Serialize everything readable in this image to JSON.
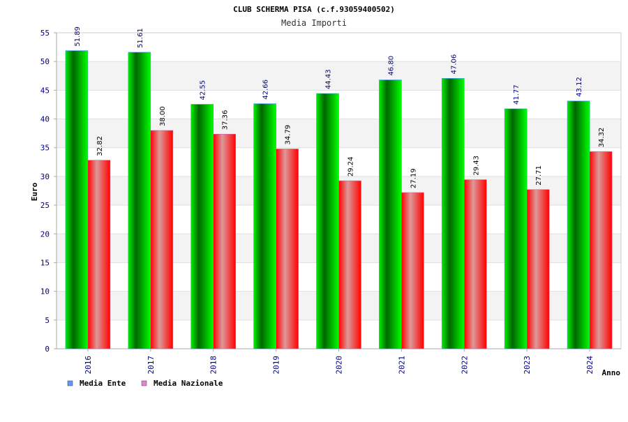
{
  "chart_data": {
    "type": "bar",
    "title": "CLUB SCHERMA PISA (c.f.93059400502)",
    "subtitle": "Media Importi",
    "xlabel": "Anno",
    "ylabel": "Euro",
    "categories": [
      "2016",
      "2017",
      "2018",
      "2019",
      "2020",
      "2021",
      "2022",
      "2023",
      "2024"
    ],
    "series": [
      {
        "name": "Media Ente",
        "values": [
          51.89,
          51.61,
          42.55,
          42.66,
          44.43,
          46.8,
          47.06,
          41.77,
          43.12
        ],
        "labels": [
          "51.89",
          "51.61",
          "42.55",
          "42.66",
          "44.43",
          "46.80",
          "47.06",
          "41.77",
          "43.12"
        ],
        "color": "#00cc00",
        "legend_color": "#6699ee"
      },
      {
        "name": "Media Nazionale",
        "values": [
          32.82,
          38.0,
          37.36,
          34.79,
          29.24,
          27.19,
          29.43,
          27.71,
          34.32
        ],
        "labels": [
          "32.82",
          "38.00",
          "37.36",
          "34.79",
          "29.24",
          "27.19",
          "29.43",
          "27.71",
          "34.32"
        ],
        "color": "#ff0000",
        "legend_color": "#dd88cc"
      }
    ],
    "yticks": [
      "0",
      "5",
      "10",
      "15",
      "20",
      "25",
      "30",
      "35",
      "40",
      "45",
      "50",
      "55"
    ],
    "ylim": [
      0,
      55
    ],
    "grid": true,
    "legend_position": "bottom-left"
  }
}
